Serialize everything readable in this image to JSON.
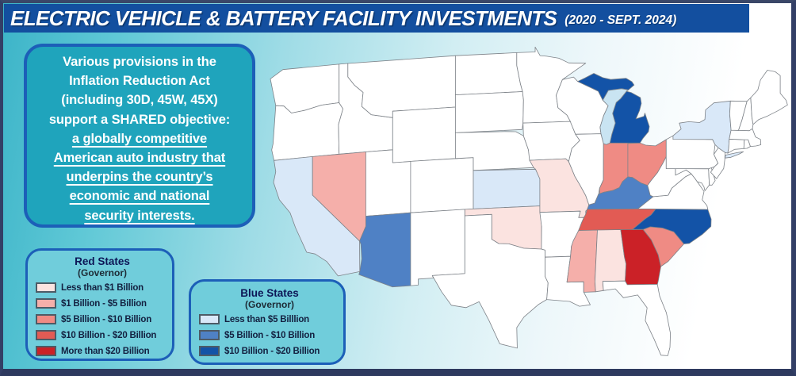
{
  "title": {
    "main": "ELECTRIC VEHICLE & BATTERY FACILITY INVESTMENTS",
    "period": "(2020 - SEPT. 2024)"
  },
  "info_box": {
    "intro_lines": [
      "Various provisions in the",
      "Inflation Reduction Act",
      "(including 30D, 45W, 45X)",
      "support a SHARED objective:"
    ],
    "underlined_lines": [
      "a globally competitive",
      "American auto industry that",
      "underpins the country’s",
      "economic and national",
      "security interests."
    ]
  },
  "legends": {
    "red": {
      "title": "Red States",
      "subtitle": "(Governor)",
      "items": [
        {
          "label": "Less than $1 Billion",
          "color": "#FBE3E0"
        },
        {
          "label": "$1 Billion - $5 Billion",
          "color": "#F5AFAA"
        },
        {
          "label": "$5 Billion - $10 Billion",
          "color": "#EF8B84"
        },
        {
          "label": "$10 Billion - $20 Billion",
          "color": "#E25B54"
        },
        {
          "label": "More than $20 Billion",
          "color": "#CB2127"
        }
      ]
    },
    "blue": {
      "title": "Blue States",
      "subtitle": "(Governor)",
      "items": [
        {
          "label": "Less than $5 Billlion",
          "color": "#D9E8F8"
        },
        {
          "label": "$5 Billion - $10 Billion",
          "color": "#4F81C5"
        },
        {
          "label": "$10 Billion - $20 Billion",
          "color": "#1353A7"
        }
      ]
    }
  },
  "map_data": {
    "type": "choropleth",
    "region": "United States (contiguous)",
    "default_fill": "#FFFFFF",
    "state_border_color": "#7D8288",
    "lake_color": "#C9E4F2",
    "states": [
      {
        "name": "California",
        "abbr": "CA",
        "governor": "blue",
        "category": "Less than $5 Billlion"
      },
      {
        "name": "New York",
        "abbr": "NY",
        "governor": "blue",
        "category": "Less than $5 Billlion"
      },
      {
        "name": "Kansas",
        "abbr": "KS",
        "governor": "blue",
        "category": "Less than $5 Billlion"
      },
      {
        "name": "Arizona",
        "abbr": "AZ",
        "governor": "blue",
        "category": "$5 Billion - $10 Billion"
      },
      {
        "name": "Kentucky",
        "abbr": "KY",
        "governor": "blue",
        "category": "$5 Billion - $10 Billion"
      },
      {
        "name": "Michigan",
        "abbr": "MI",
        "governor": "blue",
        "category": "$10 Billion - $20 Billion"
      },
      {
        "name": "North Carolina",
        "abbr": "NC",
        "governor": "blue",
        "category": "$10 Billion - $20 Billion"
      },
      {
        "name": "Missouri",
        "abbr": "MO",
        "governor": "red",
        "category": "Less than $1 Billion"
      },
      {
        "name": "Oklahoma",
        "abbr": "OK",
        "governor": "red",
        "category": "Less than $1 Billion"
      },
      {
        "name": "Alabama",
        "abbr": "AL",
        "governor": "red",
        "category": "Less than $1 Billion"
      },
      {
        "name": "Nevada",
        "abbr": "NV",
        "governor": "red",
        "category": "$1 Billion - $5 Billion"
      },
      {
        "name": "Mississippi",
        "abbr": "MS",
        "governor": "red",
        "category": "$1 Billion - $5 Billion"
      },
      {
        "name": "Indiana",
        "abbr": "IN",
        "governor": "red",
        "category": "$5 Billion - $10 Billion"
      },
      {
        "name": "Ohio",
        "abbr": "OH",
        "governor": "red",
        "category": "$5 Billion - $10 Billion"
      },
      {
        "name": "South Carolina",
        "abbr": "SC",
        "governor": "red",
        "category": "$5 Billion - $10 Billion"
      },
      {
        "name": "Tennessee",
        "abbr": "TN",
        "governor": "red",
        "category": "$10 Billion - $20 Billion"
      },
      {
        "name": "Georgia",
        "abbr": "GA",
        "governor": "red",
        "category": "More than $20 Billion"
      }
    ]
  }
}
